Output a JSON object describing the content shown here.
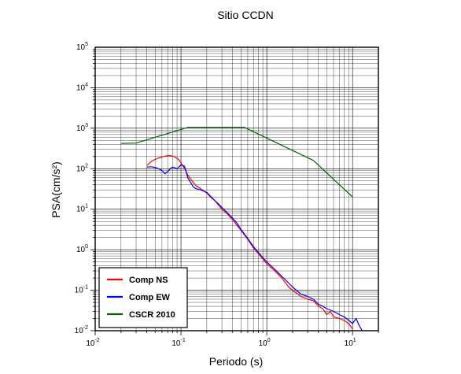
{
  "chart_data": {
    "type": "line",
    "title": "Sitio CCDN",
    "xlabel": "Periodo (s)",
    "ylabel": "PSA(cm/s²)",
    "xscale": "log",
    "yscale": "log",
    "xlim": [
      0.01,
      20
    ],
    "ylim": [
      0.01,
      100000
    ],
    "grid": true,
    "legend_position": "bottom-left",
    "xticks": [
      {
        "value": 0.01,
        "base": "10",
        "exp": "-2"
      },
      {
        "value": 0.1,
        "base": "10",
        "exp": "-1"
      },
      {
        "value": 1,
        "base": "10",
        "exp": "0"
      },
      {
        "value": 10,
        "base": "10",
        "exp": "1"
      }
    ],
    "yticks": [
      {
        "value": 0.01,
        "base": "10",
        "exp": "-2"
      },
      {
        "value": 0.1,
        "base": "10",
        "exp": "-1"
      },
      {
        "value": 1,
        "base": "10",
        "exp": "0"
      },
      {
        "value": 10,
        "base": "10",
        "exp": "1"
      },
      {
        "value": 100,
        "base": "10",
        "exp": "2"
      },
      {
        "value": 1000,
        "base": "10",
        "exp": "3"
      },
      {
        "value": 10000,
        "base": "10",
        "exp": "4"
      },
      {
        "value": 100000,
        "base": "10",
        "exp": "5"
      }
    ],
    "series": [
      {
        "name": "Comp NS",
        "color": "#ff0000",
        "x": [
          0.04,
          0.045,
          0.05,
          0.055,
          0.06,
          0.065,
          0.07,
          0.075,
          0.08,
          0.085,
          0.09,
          0.095,
          0.1,
          0.11,
          0.12,
          0.13,
          0.14,
          0.15,
          0.17,
          0.2,
          0.22,
          0.25,
          0.28,
          0.3,
          0.35,
          0.4,
          0.45,
          0.5,
          0.6,
          0.7,
          0.8,
          1.0,
          1.2,
          1.5,
          1.8,
          2.0,
          2.5,
          3.0,
          3.5,
          4.0,
          4.5,
          5.0,
          5.5,
          6.0,
          7.0,
          8.0,
          9.0,
          10.0
        ],
        "y": [
          120,
          150,
          170,
          185,
          195,
          205,
          210,
          210,
          205,
          195,
          180,
          165,
          140,
          100,
          70,
          55,
          45,
          38,
          32,
          25,
          20,
          16,
          12,
          10,
          7.5,
          5.5,
          4.0,
          3.0,
          1.8,
          1.1,
          0.8,
          0.45,
          0.32,
          0.2,
          0.12,
          0.1,
          0.07,
          0.06,
          0.055,
          0.04,
          0.035,
          0.025,
          0.03,
          0.022,
          0.02,
          0.018,
          0.015,
          0.011
        ]
      },
      {
        "name": "Comp EW",
        "color": "#0000ff",
        "x": [
          0.04,
          0.045,
          0.05,
          0.055,
          0.06,
          0.065,
          0.07,
          0.075,
          0.08,
          0.085,
          0.09,
          0.1,
          0.11,
          0.12,
          0.13,
          0.14,
          0.15,
          0.17,
          0.2,
          0.22,
          0.25,
          0.28,
          0.3,
          0.35,
          0.4,
          0.45,
          0.5,
          0.6,
          0.7,
          0.8,
          1.0,
          1.2,
          1.5,
          1.8,
          2.0,
          2.5,
          3.0,
          3.5,
          4.0,
          4.5,
          5.0,
          6.0,
          7.0,
          8.0,
          9.0,
          10.0,
          11.0,
          12.0,
          13.0
        ],
        "y": [
          110,
          112,
          108,
          100,
          90,
          75,
          85,
          100,
          110,
          105,
          98,
          125,
          115,
          60,
          45,
          35,
          32,
          30,
          26,
          21,
          16,
          13,
          11,
          8,
          6,
          4.5,
          3.2,
          1.9,
          1.2,
          0.85,
          0.5,
          0.35,
          0.22,
          0.15,
          0.12,
          0.08,
          0.07,
          0.06,
          0.045,
          0.04,
          0.035,
          0.03,
          0.025,
          0.022,
          0.018,
          0.015,
          0.02,
          0.013,
          0.01
        ]
      },
      {
        "name": "CSCR 2010",
        "color": "#006400",
        "x": [
          0.02,
          0.03,
          0.12,
          0.55,
          3.5,
          10.0
        ],
        "y": [
          420,
          430,
          1050,
          1050,
          160,
          20
        ]
      }
    ]
  }
}
